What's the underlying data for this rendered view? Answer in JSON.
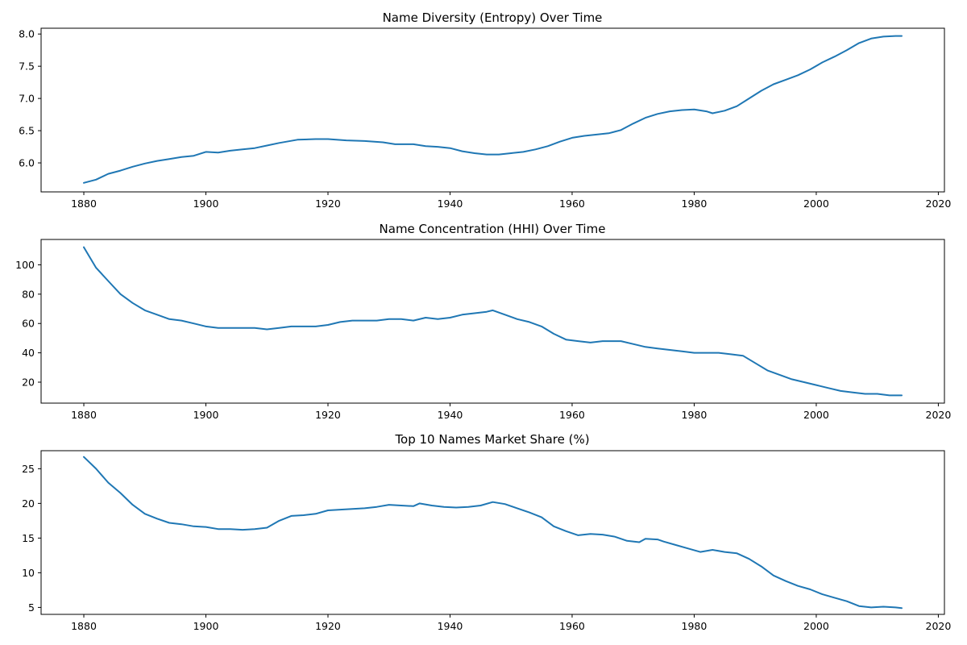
{
  "colors": {
    "series": "#1f77b4"
  },
  "chart_data": [
    {
      "type": "line",
      "title": "Name Diversity (Entropy) Over Time",
      "xlim": [
        1873,
        2021
      ],
      "ylim": [
        5.55,
        8.09
      ],
      "xticks": [
        1880,
        1900,
        1920,
        1940,
        1960,
        1980,
        2000,
        2020
      ],
      "yticks": [
        6.0,
        6.5,
        7.0,
        7.5,
        8.0
      ],
      "ytick_decimals": 1,
      "grid": false,
      "series": [
        {
          "x": [
            1880,
            1882,
            1884,
            1886,
            1888,
            1890,
            1892,
            1894,
            1896,
            1898,
            1900,
            1902,
            1904,
            1906,
            1908,
            1910,
            1912,
            1915,
            1918,
            1920,
            1923,
            1926,
            1929,
            1931,
            1934,
            1936,
            1938,
            1940,
            1942,
            1944,
            1946,
            1948,
            1950,
            1952,
            1954,
            1956,
            1958,
            1960,
            1962,
            1964,
            1966,
            1968,
            1970,
            1972,
            1974,
            1976,
            1978,
            1980,
            1982,
            1983,
            1985,
            1987,
            1989,
            1991,
            1993,
            1995,
            1997,
            1999,
            2001,
            2003,
            2005,
            2007,
            2009,
            2011,
            2013,
            2014
          ],
          "y": [
            5.69,
            5.74,
            5.83,
            5.88,
            5.94,
            5.99,
            6.03,
            6.06,
            6.09,
            6.11,
            6.17,
            6.16,
            6.19,
            6.21,
            6.23,
            6.27,
            6.31,
            6.36,
            6.37,
            6.37,
            6.35,
            6.34,
            6.32,
            6.29,
            6.29,
            6.26,
            6.25,
            6.23,
            6.18,
            6.15,
            6.13,
            6.13,
            6.15,
            6.17,
            6.21,
            6.26,
            6.33,
            6.39,
            6.42,
            6.44,
            6.46,
            6.51,
            6.61,
            6.7,
            6.76,
            6.8,
            6.82,
            6.83,
            6.8,
            6.77,
            6.81,
            6.88,
            7.0,
            7.12,
            7.22,
            7.29,
            7.36,
            7.45,
            7.56,
            7.65,
            7.75,
            7.86,
            7.93,
            7.96,
            7.97,
            7.97
          ]
        }
      ]
    },
    {
      "type": "line",
      "title": "Name Concentration (HHI) Over Time",
      "xlim": [
        1873,
        2021
      ],
      "ylim": [
        5.7,
        117.3
      ],
      "xticks": [
        1880,
        1900,
        1920,
        1940,
        1960,
        1980,
        2000,
        2020
      ],
      "yticks": [
        20,
        40,
        60,
        80,
        100
      ],
      "ytick_decimals": 0,
      "grid": false,
      "series": [
        {
          "x": [
            1880,
            1881,
            1882,
            1884,
            1886,
            1888,
            1890,
            1892,
            1894,
            1896,
            1898,
            1900,
            1902,
            1904,
            1906,
            1908,
            1910,
            1912,
            1914,
            1916,
            1918,
            1920,
            1922,
            1924,
            1926,
            1928,
            1930,
            1932,
            1934,
            1936,
            1938,
            1940,
            1942,
            1944,
            1946,
            1947,
            1949,
            1951,
            1953,
            1955,
            1957,
            1959,
            1961,
            1963,
            1965,
            1968,
            1970,
            1972,
            1974,
            1976,
            1978,
            1980,
            1982,
            1984,
            1986,
            1988,
            1990,
            1992,
            1994,
            1996,
            1998,
            2000,
            2002,
            2004,
            2006,
            2008,
            2010,
            2012,
            2014
          ],
          "y": [
            112,
            105,
            98,
            89,
            80,
            74,
            69,
            66,
            63,
            62,
            60,
            58,
            57,
            57,
            57,
            57,
            56,
            57,
            58,
            58,
            58,
            59,
            61,
            62,
            62,
            62,
            63,
            63,
            62,
            64,
            63,
            64,
            66,
            67,
            68,
            69,
            66,
            63,
            61,
            58,
            53,
            49,
            48,
            47,
            48,
            48,
            46,
            44,
            43,
            42,
            41,
            40,
            40,
            40,
            39,
            38,
            33,
            28,
            25,
            22,
            20,
            18,
            16,
            14,
            13,
            12,
            12,
            11,
            11
          ]
        }
      ]
    },
    {
      "type": "line",
      "title": "Top 10 Names Market Share (%)",
      "xlim": [
        1873,
        2021
      ],
      "ylim": [
        4.0,
        27.6
      ],
      "xticks": [
        1880,
        1900,
        1920,
        1940,
        1960,
        1980,
        2000,
        2020
      ],
      "yticks": [
        5,
        10,
        15,
        20,
        25
      ],
      "ytick_decimals": 0,
      "grid": false,
      "series": [
        {
          "x": [
            1880,
            1882,
            1884,
            1886,
            1888,
            1890,
            1892,
            1894,
            1896,
            1898,
            1900,
            1902,
            1904,
            1906,
            1908,
            1910,
            1912,
            1914,
            1916,
            1918,
            1920,
            1922,
            1924,
            1926,
            1928,
            1930,
            1932,
            1934,
            1935,
            1937,
            1939,
            1941,
            1943,
            1945,
            1947,
            1949,
            1951,
            1953,
            1955,
            1957,
            1959,
            1961,
            1963,
            1965,
            1967,
            1969,
            1971,
            1972,
            1974,
            1975,
            1977,
            1979,
            1981,
            1983,
            1985,
            1987,
            1989,
            1991,
            1993,
            1995,
            1997,
            1999,
            2001,
            2003,
            2005,
            2007,
            2009,
            2011,
            2013,
            2014
          ],
          "y": [
            26.7,
            25.0,
            23.0,
            21.5,
            19.8,
            18.5,
            17.8,
            17.2,
            17.0,
            16.7,
            16.6,
            16.3,
            16.3,
            16.2,
            16.3,
            16.5,
            17.5,
            18.2,
            18.3,
            18.5,
            19.0,
            19.1,
            19.2,
            19.3,
            19.5,
            19.8,
            19.7,
            19.6,
            20.0,
            19.7,
            19.5,
            19.4,
            19.5,
            19.7,
            20.2,
            19.9,
            19.3,
            18.7,
            18.0,
            16.7,
            16.0,
            15.4,
            15.6,
            15.5,
            15.2,
            14.6,
            14.4,
            14.9,
            14.8,
            14.5,
            14.0,
            13.5,
            13.0,
            13.3,
            13.0,
            12.8,
            12.0,
            10.9,
            9.6,
            8.8,
            8.1,
            7.6,
            6.9,
            6.4,
            5.9,
            5.2,
            5.0,
            5.1,
            5.0,
            4.9
          ]
        }
      ]
    }
  ]
}
